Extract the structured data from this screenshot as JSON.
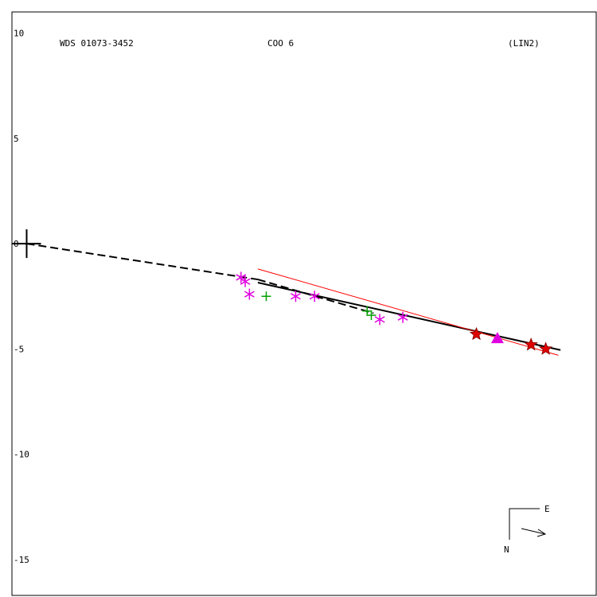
{
  "header": {
    "left": "WDS 01073-3452",
    "center": "COO   6",
    "right": "(LIN2)"
  },
  "compass": {
    "east": "E",
    "north": "N"
  },
  "chart_data": {
    "type": "scatter",
    "title": "",
    "xlabel": "",
    "ylabel": "",
    "xlim": [
      -12.2,
      15.6
    ],
    "ylim": [
      -16.7,
      11.0
    ],
    "grid": false,
    "y_ticks": [
      10,
      5,
      0,
      -5,
      -10,
      -15
    ],
    "primary": {
      "x": -11.5,
      "y": 0
    },
    "series": [
      {
        "marker": "asterisk",
        "color": "#e000e0",
        "points": [
          [
            -1.3,
            -1.6
          ],
          [
            -1.1,
            -1.8
          ],
          [
            -0.9,
            -2.4
          ],
          [
            1.3,
            -2.5
          ],
          [
            2.2,
            -2.5
          ],
          [
            5.3,
            -3.6
          ],
          [
            6.4,
            -3.5
          ]
        ]
      },
      {
        "marker": "plus",
        "color": "#00a000",
        "points": [
          [
            -0.1,
            -2.5
          ],
          [
            4.7,
            -3.2
          ],
          [
            4.9,
            -3.4
          ]
        ]
      },
      {
        "marker": "star",
        "color": "#e00000",
        "points": [
          [
            9.9,
            -4.3
          ],
          [
            12.5,
            -4.8
          ],
          [
            13.2,
            -5.0
          ]
        ]
      },
      {
        "marker": "triangle",
        "color": "#e000e0",
        "points": [
          [
            10.9,
            -4.5
          ]
        ]
      }
    ],
    "lines": [
      {
        "style": "dashed",
        "color": "#000000",
        "from": [
          -11.5,
          0.0
        ],
        "to": [
          -0.5,
          -1.7
        ]
      },
      {
        "style": "dashed",
        "color": "#000000",
        "from": [
          -0.5,
          -1.7
        ],
        "to": [
          5.0,
          -3.3
        ]
      },
      {
        "style": "solid",
        "color": "#000000",
        "from": [
          -0.5,
          -1.85
        ],
        "to": [
          13.9,
          -5.05
        ]
      },
      {
        "style": "solid",
        "color": "#ff0000",
        "from": [
          -0.5,
          -1.2
        ],
        "to": [
          13.8,
          -5.3
        ]
      }
    ]
  }
}
